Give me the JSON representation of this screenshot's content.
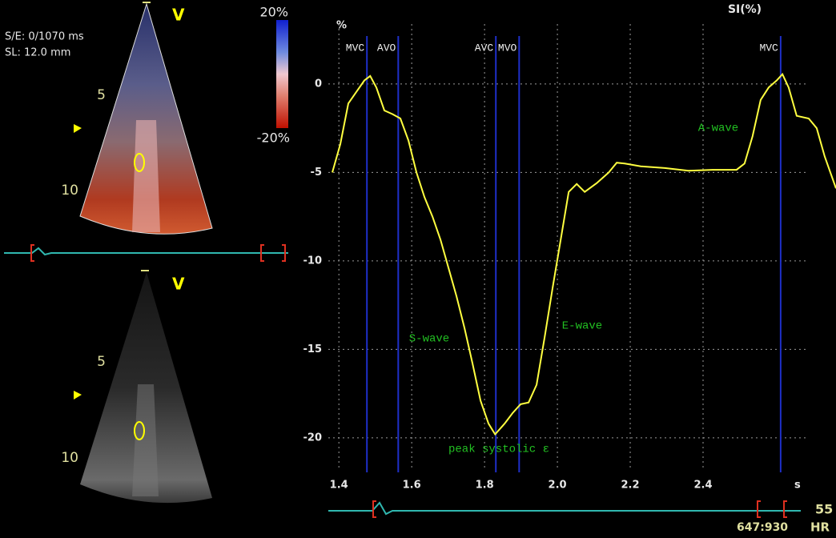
{
  "chart_data": {
    "type": "line",
    "title": "SI(%)",
    "y_unit": "%",
    "x_unit": "s",
    "x": [
      1.382,
      1.404,
      1.426,
      1.448,
      1.47,
      1.486,
      1.503,
      1.525,
      1.547,
      1.569,
      1.591,
      1.613,
      1.635,
      1.657,
      1.679,
      1.701,
      1.723,
      1.745,
      1.767,
      1.789,
      1.811,
      1.829,
      1.855,
      1.877,
      1.899,
      1.921,
      1.943,
      1.965,
      1.987,
      2.009,
      2.031,
      2.053,
      2.075,
      2.108,
      2.141,
      2.163,
      2.185,
      2.229,
      2.295,
      2.36,
      2.426,
      2.492,
      2.514,
      2.536,
      2.558,
      2.58,
      2.602,
      2.618,
      2.635,
      2.657,
      2.69,
      2.712,
      2.734,
      2.765
    ],
    "series": [
      {
        "color": "#ffff40",
        "values": [
          -5.0,
          -3.4,
          -1.1,
          -0.45,
          0.2,
          0.45,
          -0.2,
          -1.5,
          -1.7,
          -1.95,
          -3.2,
          -5.0,
          -6.4,
          -7.5,
          -8.8,
          -10.4,
          -12.0,
          -13.8,
          -15.8,
          -17.9,
          -19.2,
          -19.8,
          -19.2,
          -18.6,
          -18.1,
          -18.0,
          -17.0,
          -14.3,
          -11.5,
          -8.8,
          -6.1,
          -5.65,
          -6.1,
          -5.6,
          -5.0,
          -4.45,
          -4.5,
          -4.65,
          -4.75,
          -4.9,
          -4.85,
          -4.85,
          -4.5,
          -2.95,
          -0.9,
          -0.2,
          0.2,
          0.55,
          -0.2,
          -1.8,
          -1.95,
          -2.5,
          -4.1,
          -5.9
        ]
      }
    ],
    "events": [
      {
        "label": "MVC",
        "x": 1.477
      },
      {
        "label": "AVO",
        "x": 1.563
      },
      {
        "label": "AVC",
        "x": 1.831
      },
      {
        "label": "MVO",
        "x": 1.895
      },
      {
        "label": "MVC",
        "x": 2.613
      }
    ],
    "event_color": "#1e2fc8",
    "annotations": [
      "A-wave",
      "S-wave",
      "E-wave",
      "peak systolic ε"
    ],
    "annotation_color": "#22c022",
    "xlim": [
      1.382,
      2.765
    ],
    "ylim": [
      -21.95,
      2.71
    ],
    "xticks": [
      1.4,
      1.6,
      1.8,
      {
        "value": 2,
        "label": "2.0"
      },
      2.2,
      2.4
    ],
    "yticks": [
      0,
      -5,
      -10,
      -15,
      -20
    ],
    "grid": true
  },
  "left_panel": {
    "frame_info": "S/E: 0/1070 ms",
    "sample_length": "SL: 12.0 mm",
    "view_top": "V",
    "view_bottom": "V",
    "depth_top": [
      "5",
      "10"
    ],
    "depth_bottom": [
      "5",
      "10"
    ],
    "colorbar_max": "20%",
    "colorbar_min": "-20%"
  },
  "footer": {
    "heart_rate": "55",
    "heart_rate_label": "HR",
    "frame_counter": "647:930"
  }
}
